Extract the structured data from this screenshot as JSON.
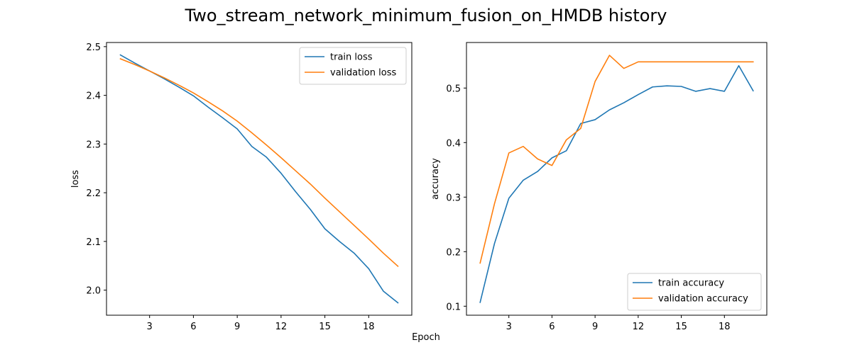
{
  "title": "Two_stream_network_minimum_fusion_on_HMDB history",
  "xlabel": "Epoch",
  "colors": {
    "train": "#1f77b4",
    "validation": "#ff7f0e"
  },
  "chart_data": [
    {
      "type": "line",
      "ylabel": "loss",
      "xlim": [
        0.05,
        20.95
      ],
      "ylim": [
        1.9485,
        2.5085
      ],
      "xticks": [
        3,
        6,
        9,
        12,
        15,
        18
      ],
      "yticks": [
        2.0,
        2.1,
        2.2,
        2.3,
        2.4,
        2.5
      ],
      "ytick_labels": [
        "2.0",
        "2.1",
        "2.2",
        "2.3",
        "2.4",
        "2.5"
      ],
      "legend": "top-right",
      "x": [
        1,
        2,
        3,
        4,
        5,
        6,
        7,
        8,
        9,
        10,
        11,
        12,
        13,
        14,
        15,
        16,
        17,
        18,
        19,
        20
      ],
      "series": [
        {
          "name": "train loss",
          "color": "#1f77b4",
          "values": [
            2.483,
            2.466,
            2.45,
            2.434,
            2.417,
            2.399,
            2.376,
            2.354,
            2.331,
            2.295,
            2.273,
            2.24,
            2.202,
            2.166,
            2.126,
            2.1,
            2.076,
            2.044,
            1.998,
            1.974
          ]
        },
        {
          "name": "validation loss",
          "color": "#ff7f0e",
          "values": [
            2.475,
            2.463,
            2.45,
            2.436,
            2.421,
            2.405,
            2.387,
            2.368,
            2.347,
            2.323,
            2.298,
            2.272,
            2.245,
            2.218,
            2.189,
            2.161,
            2.133,
            2.105,
            2.076,
            2.049
          ]
        }
      ]
    },
    {
      "type": "line",
      "ylabel": "accuracy",
      "xlim": [
        0.05,
        20.95
      ],
      "ylim": [
        0.0835,
        0.5835
      ],
      "xticks": [
        3,
        6,
        9,
        12,
        15,
        18
      ],
      "yticks": [
        0.1,
        0.2,
        0.3,
        0.4,
        0.5
      ],
      "ytick_labels": [
        "0.1",
        "0.2",
        "0.3",
        "0.4",
        "0.5"
      ],
      "legend": "bottom-right",
      "x": [
        1,
        2,
        3,
        4,
        5,
        6,
        7,
        8,
        9,
        10,
        11,
        12,
        13,
        14,
        15,
        16,
        17,
        18,
        19,
        20
      ],
      "series": [
        {
          "name": "train accuracy",
          "color": "#1f77b4",
          "values": [
            0.107,
            0.215,
            0.298,
            0.331,
            0.347,
            0.372,
            0.385,
            0.435,
            0.442,
            0.46,
            0.473,
            0.488,
            0.502,
            0.504,
            0.503,
            0.494,
            0.499,
            0.494,
            0.541,
            0.495
          ]
        },
        {
          "name": "validation accuracy",
          "color": "#ff7f0e",
          "values": [
            0.179,
            0.288,
            0.381,
            0.393,
            0.37,
            0.358,
            0.405,
            0.426,
            0.512,
            0.56,
            0.536,
            0.548,
            0.548,
            0.548,
            0.548,
            0.548,
            0.548,
            0.548,
            0.548,
            0.548
          ]
        }
      ]
    }
  ]
}
